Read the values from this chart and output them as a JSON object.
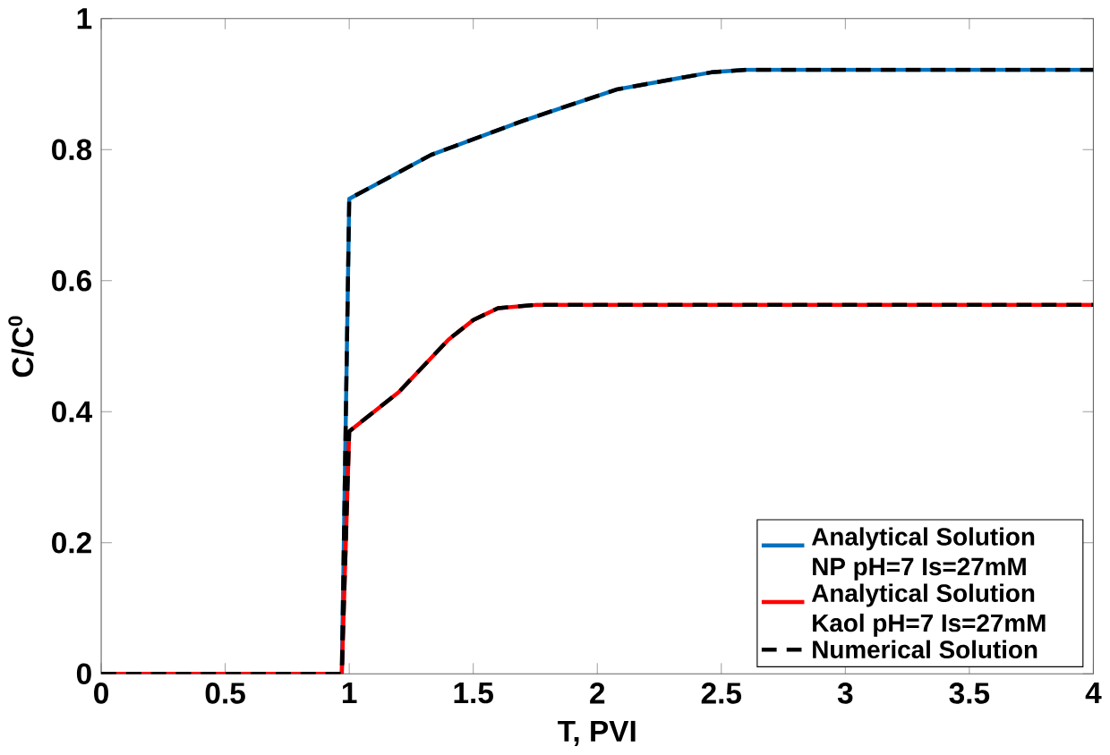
{
  "chart_data": {
    "type": "line",
    "xlabel": "T, PVI",
    "ylabel": "C/C$^{0}$",
    "xlim": [
      0,
      4
    ],
    "ylim": [
      0,
      1
    ],
    "xticks": [
      0,
      0.5,
      1,
      1.5,
      2,
      2.5,
      3,
      3.5,
      4
    ],
    "yticks": [
      0,
      0.2,
      0.4,
      0.6,
      0.8,
      1
    ],
    "legend": "bottom right",
    "marker": "none",
    "series": [
      {
        "name": "Analytical Solution NP pH=7 Is=27mM",
        "color": "#0072bd",
        "line_style": "solid",
        "x": [
          0,
          0.97,
          1.0,
          1.33,
          1.7,
          2.08,
          2.46,
          2.6,
          4
        ],
        "values": [
          0,
          0,
          0.725,
          0.792,
          0.844,
          0.892,
          0.918,
          0.922,
          0.922
        ]
      },
      {
        "name": "Analytical Solution Kaol pH=7 Is=27mM",
        "color": "#ff0000",
        "line_style": "solid",
        "x": [
          0,
          0.97,
          1.0,
          1.2,
          1.4,
          1.5,
          1.6,
          1.75,
          4
        ],
        "values": [
          0,
          0,
          0.37,
          0.43,
          0.51,
          0.54,
          0.558,
          0.563,
          0.563
        ]
      },
      {
        "name": "Numerical Solution",
        "color": "#000000",
        "line_style": "dashed",
        "x": [
          0,
          0.97,
          1.0,
          1.33,
          1.7,
          2.08,
          2.46,
          2.6,
          4
        ],
        "values": [
          0,
          0,
          0.725,
          0.792,
          0.844,
          0.892,
          0.918,
          0.922,
          0.922
        ]
      },
      {
        "color": "#000000",
        "line_style": "dashed",
        "x": [
          0,
          0.97,
          1.0,
          1.2,
          1.4,
          1.5,
          1.6,
          1.75,
          4
        ],
        "values": [
          0,
          0,
          0.37,
          0.43,
          0.51,
          0.54,
          0.558,
          0.563,
          0.563
        ]
      }
    ]
  }
}
